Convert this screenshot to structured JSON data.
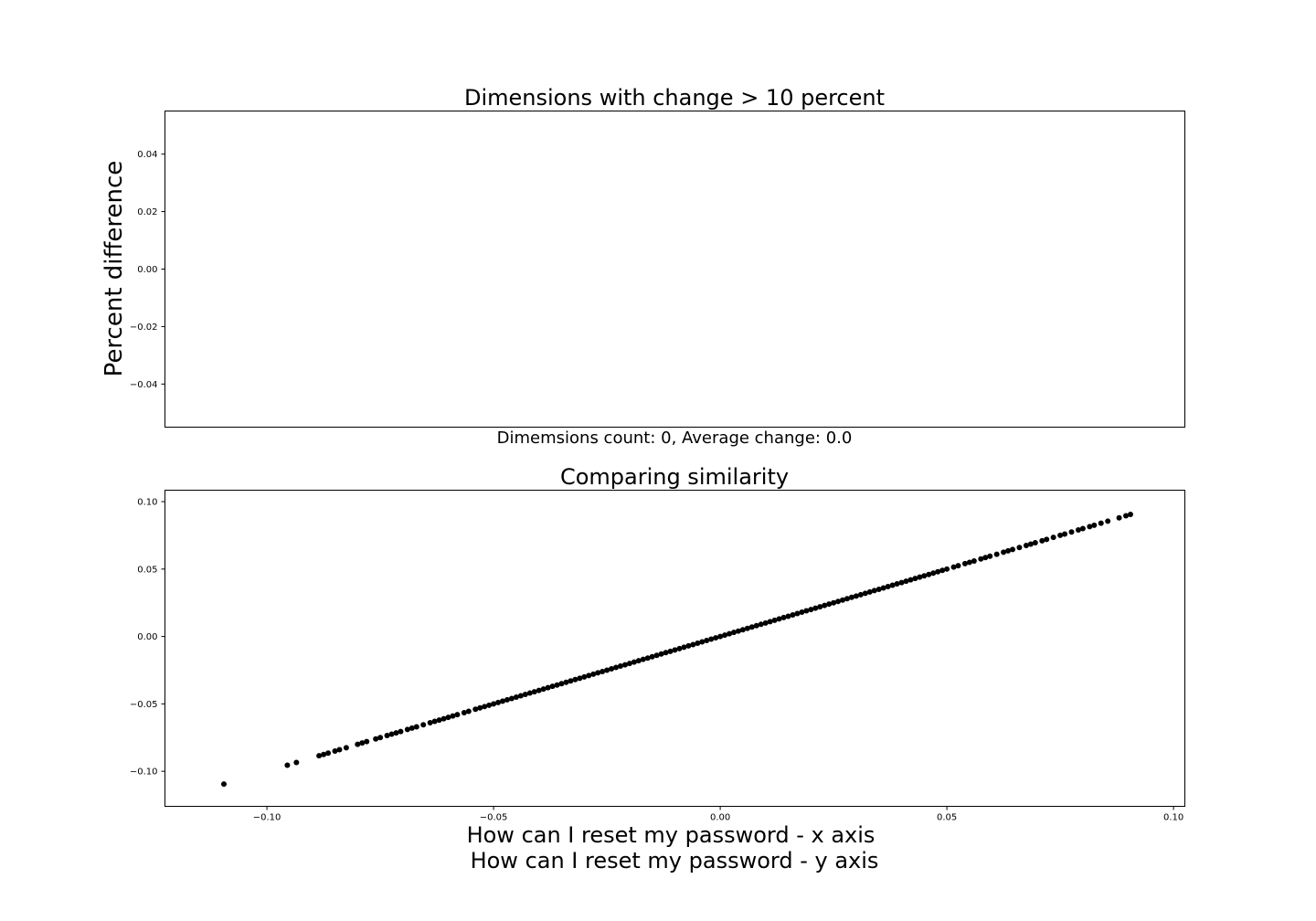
{
  "chart_data": [
    {
      "type": "bar",
      "title": "Dimensions with change > 10 percent",
      "ylabel": "Percent difference",
      "xlabel": "",
      "ylim": [
        -0.055,
        0.055
      ],
      "yticks": [
        "0.04",
        "0.02",
        "0.00",
        "−0.02",
        "−0.04"
      ],
      "ytick_values": [
        0.04,
        0.02,
        0.0,
        -0.02,
        -0.04
      ],
      "categories": [],
      "values": [],
      "caption": "Dimemsions count: 0, Average change: 0.0",
      "grid": false
    },
    {
      "type": "scatter",
      "title": "Comparing similarity",
      "xlabel_line1": "How can I reset my password - x axis",
      "xlabel_line2": "How can I reset my password - y axis",
      "ylabel": "",
      "xlim": [
        -0.1225,
        0.1025
      ],
      "ylim": [
        -0.126,
        0.1085
      ],
      "xticks": [
        "−0.10",
        "−0.05",
        "0.00",
        "0.05",
        "0.10"
      ],
      "xtick_values": [
        -0.1,
        -0.05,
        0.0,
        0.05,
        0.1
      ],
      "yticks": [
        "0.10",
        "0.05",
        "0.00",
        "−0.05",
        "−0.10"
      ],
      "ytick_values": [
        0.1,
        0.05,
        0.0,
        -0.05,
        -0.1
      ],
      "color": "#000000",
      "grid": false,
      "points": [
        [
          -0.1095,
          -0.1095
        ],
        [
          -0.0955,
          -0.0955
        ],
        [
          -0.0935,
          -0.0935
        ],
        [
          -0.0885,
          -0.0885
        ],
        [
          -0.0875,
          -0.0875
        ],
        [
          -0.0865,
          -0.0865
        ],
        [
          -0.085,
          -0.085
        ],
        [
          -0.084,
          -0.084
        ],
        [
          -0.0825,
          -0.0825
        ],
        [
          -0.08,
          -0.08
        ],
        [
          -0.079,
          -0.079
        ],
        [
          -0.078,
          -0.078
        ],
        [
          -0.076,
          -0.076
        ],
        [
          -0.075,
          -0.075
        ],
        [
          -0.0735,
          -0.0735
        ],
        [
          -0.0725,
          -0.0725
        ],
        [
          -0.0715,
          -0.0715
        ],
        [
          -0.0705,
          -0.0705
        ],
        [
          -0.069,
          -0.069
        ],
        [
          -0.068,
          -0.068
        ],
        [
          -0.067,
          -0.067
        ],
        [
          -0.0655,
          -0.0655
        ],
        [
          -0.064,
          -0.064
        ],
        [
          -0.063,
          -0.063
        ],
        [
          -0.062,
          -0.062
        ],
        [
          -0.061,
          -0.061
        ],
        [
          -0.06,
          -0.06
        ],
        [
          -0.059,
          -0.059
        ],
        [
          -0.058,
          -0.058
        ],
        [
          -0.0565,
          -0.0565
        ],
        [
          -0.0555,
          -0.0555
        ],
        [
          -0.054,
          -0.054
        ],
        [
          -0.053,
          -0.053
        ],
        [
          -0.052,
          -0.052
        ],
        [
          -0.051,
          -0.051
        ],
        [
          -0.05,
          -0.05
        ],
        [
          -0.049,
          -0.049
        ],
        [
          -0.048,
          -0.048
        ],
        [
          -0.047,
          -0.047
        ],
        [
          -0.046,
          -0.046
        ],
        [
          -0.045,
          -0.045
        ],
        [
          -0.044,
          -0.044
        ],
        [
          -0.043,
          -0.043
        ],
        [
          -0.042,
          -0.042
        ],
        [
          -0.041,
          -0.041
        ],
        [
          -0.04,
          -0.04
        ],
        [
          -0.039,
          -0.039
        ],
        [
          -0.038,
          -0.038
        ],
        [
          -0.037,
          -0.037
        ],
        [
          -0.036,
          -0.036
        ],
        [
          -0.035,
          -0.035
        ],
        [
          -0.034,
          -0.034
        ],
        [
          -0.033,
          -0.033
        ],
        [
          -0.032,
          -0.032
        ],
        [
          -0.031,
          -0.031
        ],
        [
          -0.03,
          -0.03
        ],
        [
          -0.029,
          -0.029
        ],
        [
          -0.028,
          -0.028
        ],
        [
          -0.027,
          -0.027
        ],
        [
          -0.026,
          -0.026
        ],
        [
          -0.025,
          -0.025
        ],
        [
          -0.024,
          -0.024
        ],
        [
          -0.023,
          -0.023
        ],
        [
          -0.022,
          -0.022
        ],
        [
          -0.021,
          -0.021
        ],
        [
          -0.02,
          -0.02
        ],
        [
          -0.019,
          -0.019
        ],
        [
          -0.018,
          -0.018
        ],
        [
          -0.017,
          -0.017
        ],
        [
          -0.016,
          -0.016
        ],
        [
          -0.015,
          -0.015
        ],
        [
          -0.014,
          -0.014
        ],
        [
          -0.013,
          -0.013
        ],
        [
          -0.012,
          -0.012
        ],
        [
          -0.011,
          -0.011
        ],
        [
          -0.01,
          -0.01
        ],
        [
          -0.009,
          -0.009
        ],
        [
          -0.008,
          -0.008
        ],
        [
          -0.007,
          -0.007
        ],
        [
          -0.006,
          -0.006
        ],
        [
          -0.005,
          -0.005
        ],
        [
          -0.004,
          -0.004
        ],
        [
          -0.003,
          -0.003
        ],
        [
          -0.002,
          -0.002
        ],
        [
          -0.001,
          -0.001
        ],
        [
          0.0,
          0.0
        ],
        [
          0.001,
          0.001
        ],
        [
          0.002,
          0.002
        ],
        [
          0.003,
          0.003
        ],
        [
          0.004,
          0.004
        ],
        [
          0.005,
          0.005
        ],
        [
          0.006,
          0.006
        ],
        [
          0.007,
          0.007
        ],
        [
          0.008,
          0.008
        ],
        [
          0.009,
          0.009
        ],
        [
          0.01,
          0.01
        ],
        [
          0.011,
          0.011
        ],
        [
          0.012,
          0.012
        ],
        [
          0.013,
          0.013
        ],
        [
          0.014,
          0.014
        ],
        [
          0.015,
          0.015
        ],
        [
          0.016,
          0.016
        ],
        [
          0.017,
          0.017
        ],
        [
          0.018,
          0.018
        ],
        [
          0.019,
          0.019
        ],
        [
          0.02,
          0.02
        ],
        [
          0.021,
          0.021
        ],
        [
          0.022,
          0.022
        ],
        [
          0.023,
          0.023
        ],
        [
          0.024,
          0.024
        ],
        [
          0.025,
          0.025
        ],
        [
          0.026,
          0.026
        ],
        [
          0.027,
          0.027
        ],
        [
          0.028,
          0.028
        ],
        [
          0.029,
          0.029
        ],
        [
          0.03,
          0.03
        ],
        [
          0.031,
          0.031
        ],
        [
          0.032,
          0.032
        ],
        [
          0.033,
          0.033
        ],
        [
          0.034,
          0.034
        ],
        [
          0.035,
          0.035
        ],
        [
          0.036,
          0.036
        ],
        [
          0.037,
          0.037
        ],
        [
          0.038,
          0.038
        ],
        [
          0.039,
          0.039
        ],
        [
          0.04,
          0.04
        ],
        [
          0.041,
          0.041
        ],
        [
          0.042,
          0.042
        ],
        [
          0.043,
          0.043
        ],
        [
          0.044,
          0.044
        ],
        [
          0.045,
          0.045
        ],
        [
          0.046,
          0.046
        ],
        [
          0.047,
          0.047
        ],
        [
          0.048,
          0.048
        ],
        [
          0.049,
          0.049
        ],
        [
          0.05,
          0.05
        ],
        [
          0.0515,
          0.0515
        ],
        [
          0.0525,
          0.0525
        ],
        [
          0.054,
          0.054
        ],
        [
          0.055,
          0.055
        ],
        [
          0.056,
          0.056
        ],
        [
          0.0575,
          0.0575
        ],
        [
          0.0585,
          0.0585
        ],
        [
          0.0595,
          0.0595
        ],
        [
          0.061,
          0.061
        ],
        [
          0.0625,
          0.0625
        ],
        [
          0.0635,
          0.0635
        ],
        [
          0.0645,
          0.0645
        ],
        [
          0.066,
          0.066
        ],
        [
          0.0675,
          0.0675
        ],
        [
          0.0685,
          0.0685
        ],
        [
          0.0695,
          0.0695
        ],
        [
          0.071,
          0.071
        ],
        [
          0.072,
          0.072
        ],
        [
          0.0735,
          0.0735
        ],
        [
          0.075,
          0.075
        ],
        [
          0.076,
          0.076
        ],
        [
          0.0775,
          0.0775
        ],
        [
          0.079,
          0.079
        ],
        [
          0.08,
          0.08
        ],
        [
          0.0815,
          0.0815
        ],
        [
          0.0825,
          0.0825
        ],
        [
          0.084,
          0.084
        ],
        [
          0.0855,
          0.0855
        ],
        [
          0.088,
          0.088
        ],
        [
          0.0895,
          0.0895
        ],
        [
          0.0905,
          0.0905
        ]
      ]
    }
  ]
}
